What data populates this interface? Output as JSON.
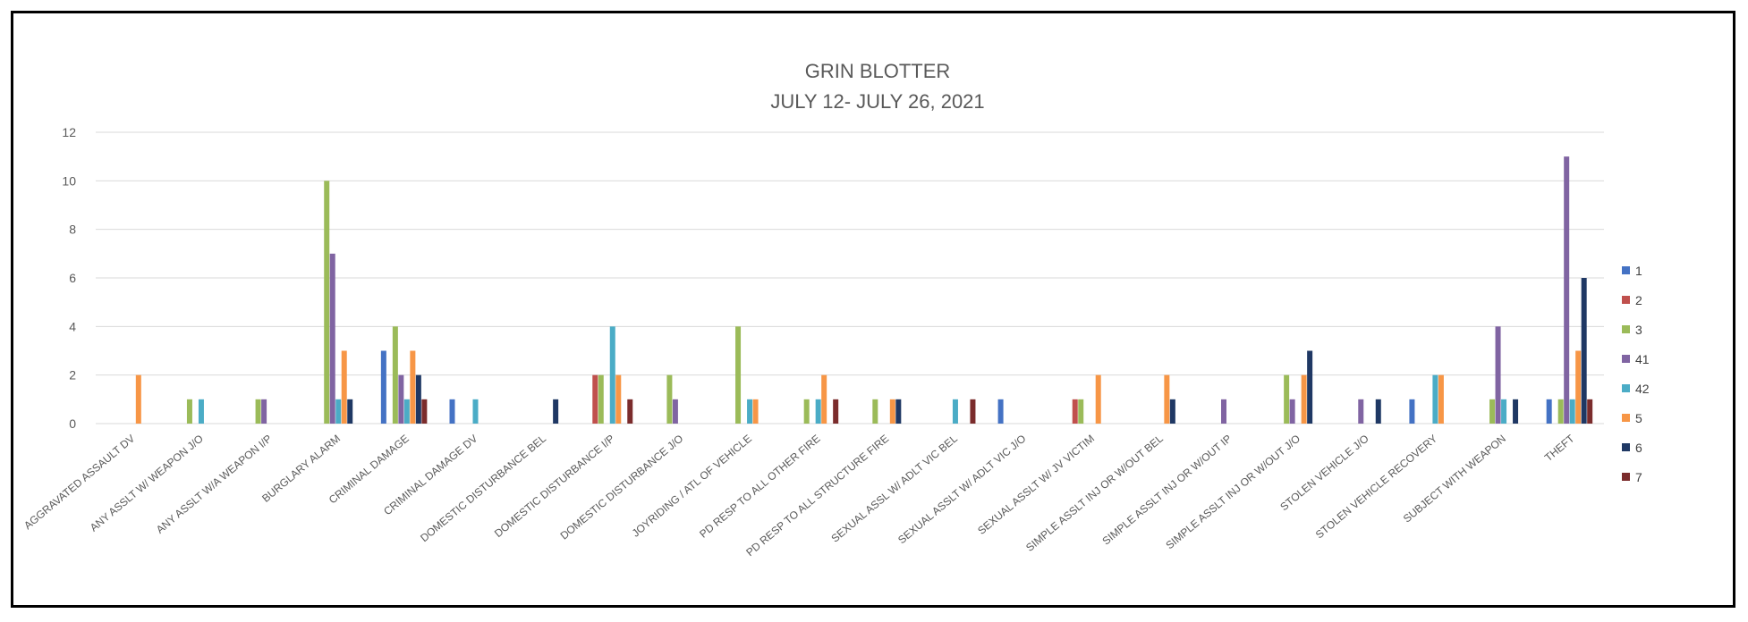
{
  "chart_data": {
    "type": "bar",
    "title": "GRIN BLOTTER",
    "subtitle": "JULY 12- JULY 26, 2021",
    "xlabel": "",
    "ylabel": "",
    "ylim": [
      0,
      12
    ],
    "yticks": [
      0,
      2,
      4,
      6,
      8,
      10,
      12
    ],
    "grid": true,
    "legend_position": "right",
    "categories": [
      "AGGRAVATED ASSAULT DV",
      "ANY ASSLT W/ WEAPON J/O",
      "ANY ASSLT W/A WEAPON I/P",
      "BURGLARY ALARM",
      "CRIMINAL DAMAGE",
      "CRIMINAL DAMAGE DV",
      "DOMESTIC DISTURBANCE BEL",
      "DOMESTIC DISTURBANCE I/P",
      "DOMESTIC DISTURBANCE J/O",
      "JOYRIDING / ATL OF VEHICLE",
      "PD RESP TO ALL OTHER FIRE",
      "PD RESP TO ALL STRUCTURE FIRE",
      "SEXUAL ASSL W/ ADLT VIC BEL",
      "SEXUAL ASSLT W/ ADLT VIC J/O",
      "SEXUAL ASSLT W/ JV VICTIM",
      "SIMPLE ASSLT INJ OR W/OUT BEL",
      "SIMPLE ASSLT INJ OR W/OUT IP",
      "SIMPLE ASSLT INJ OR W/OUT J/O",
      "STOLEN VEHICLE J/O",
      "STOLEN VEHICLE RECOVERY",
      "SUBJECT WITH WEAPON",
      "THEFT"
    ],
    "series": [
      {
        "name": "1",
        "color": "#4472C4",
        "values": [
          0,
          0,
          0,
          0,
          3,
          1,
          0,
          0,
          0,
          0,
          0,
          0,
          0,
          1,
          0,
          0,
          0,
          0,
          0,
          1,
          0,
          1
        ]
      },
      {
        "name": "2",
        "color": "#C0504D",
        "values": [
          0,
          0,
          0,
          0,
          0,
          0,
          0,
          2,
          0,
          0,
          0,
          0,
          0,
          0,
          1,
          0,
          0,
          0,
          0,
          0,
          0,
          0
        ]
      },
      {
        "name": "3",
        "color": "#9BBB59",
        "values": [
          0,
          1,
          1,
          10,
          4,
          0,
          0,
          2,
          2,
          4,
          1,
          1,
          0,
          0,
          1,
          0,
          0,
          2,
          0,
          0,
          1,
          1
        ]
      },
      {
        "name": "41",
        "color": "#8064A2",
        "values": [
          0,
          0,
          1,
          7,
          2,
          0,
          0,
          0,
          1,
          0,
          0,
          0,
          0,
          0,
          0,
          0,
          1,
          1,
          1,
          0,
          4,
          11
        ]
      },
      {
        "name": "42",
        "color": "#4BACC6",
        "values": [
          0,
          1,
          0,
          1,
          1,
          1,
          0,
          4,
          0,
          1,
          1,
          0,
          1,
          0,
          0,
          0,
          0,
          0,
          0,
          2,
          1,
          1
        ]
      },
      {
        "name": "5",
        "color": "#F79646",
        "values": [
          2,
          0,
          0,
          3,
          3,
          0,
          0,
          2,
          0,
          1,
          2,
          1,
          0,
          0,
          2,
          2,
          0,
          2,
          0,
          2,
          0,
          3
        ]
      },
      {
        "name": "6",
        "color": "#1F3864",
        "values": [
          0,
          0,
          0,
          1,
          2,
          0,
          1,
          0,
          0,
          0,
          0,
          1,
          0,
          0,
          0,
          1,
          0,
          3,
          1,
          0,
          1,
          6
        ]
      },
      {
        "name": "7",
        "color": "#7B2C2C",
        "values": [
          0,
          0,
          0,
          0,
          1,
          0,
          0,
          1,
          0,
          0,
          1,
          0,
          1,
          0,
          0,
          0,
          0,
          0,
          0,
          0,
          0,
          1
        ]
      }
    ]
  }
}
